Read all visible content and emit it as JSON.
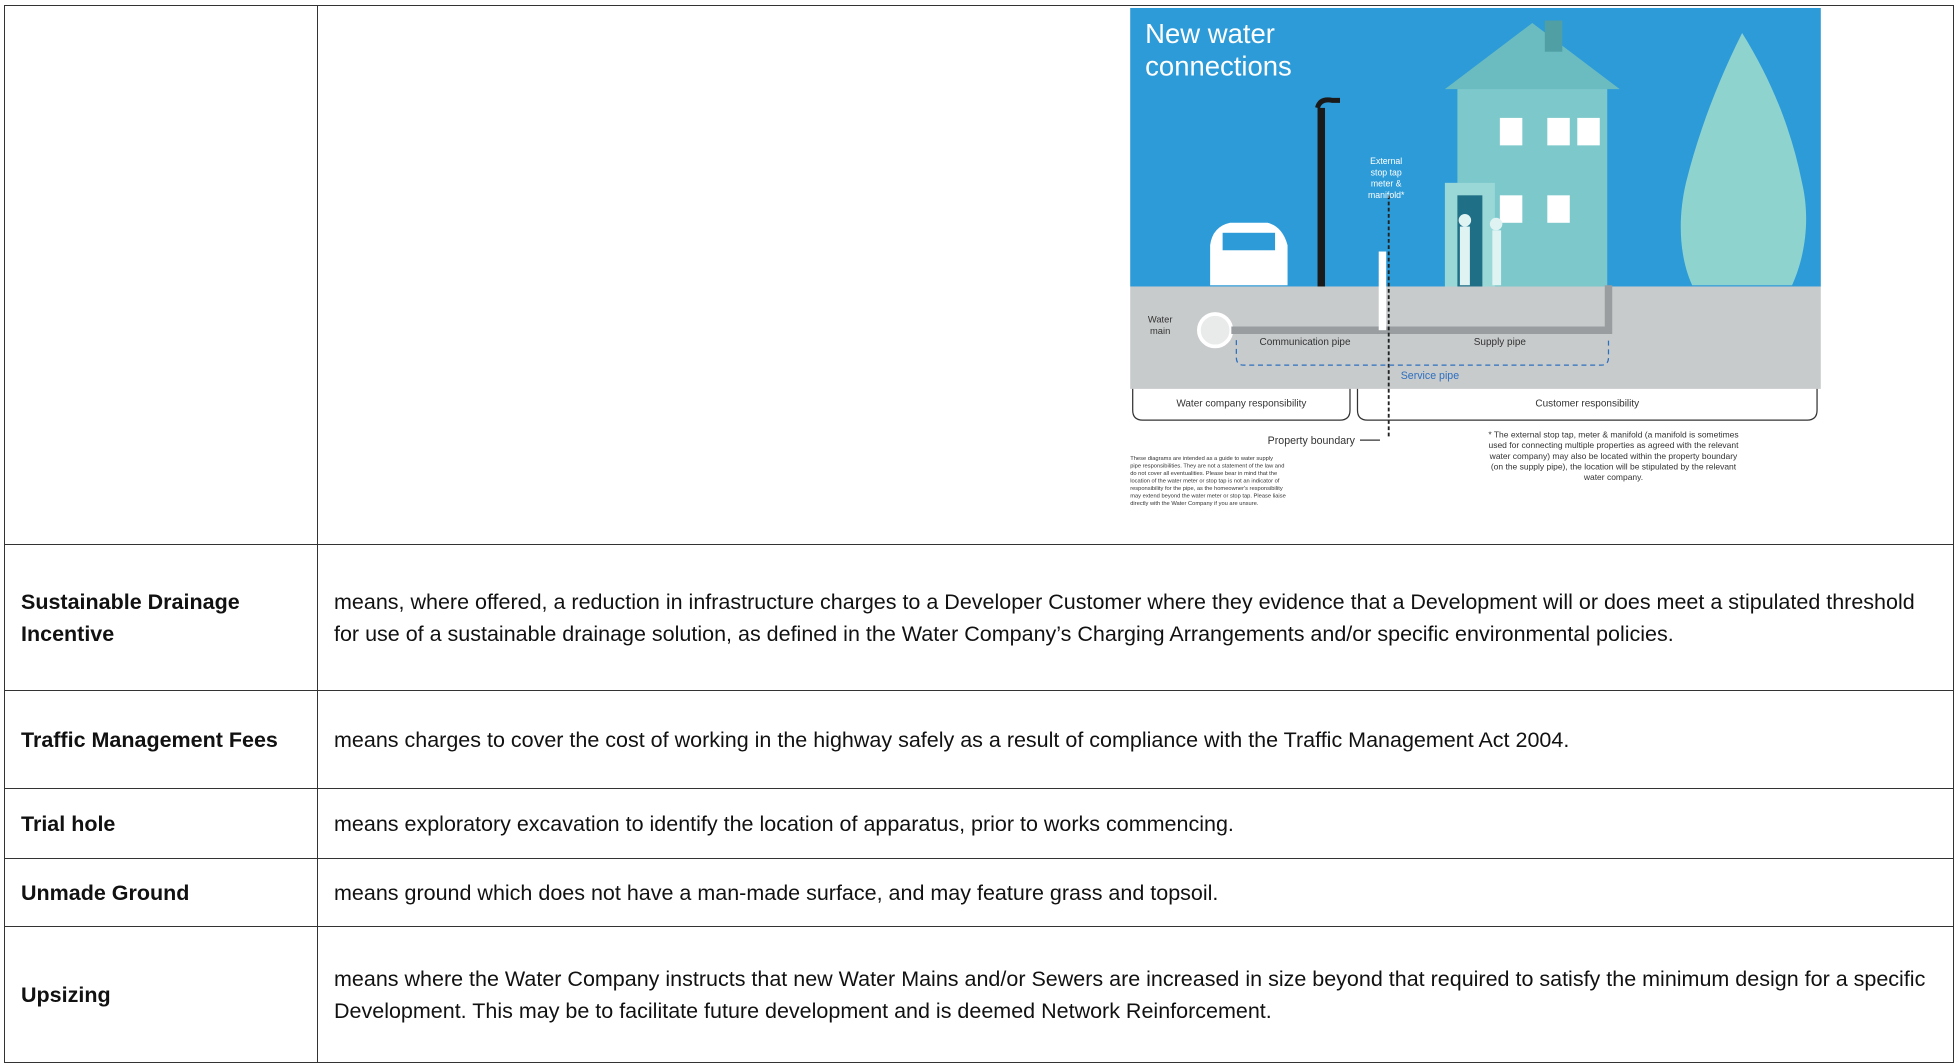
{
  "diagram": {
    "title": [
      "New water",
      "connections"
    ],
    "stop_tap_label": [
      "External",
      "stop tap",
      "meter &",
      "manifold*"
    ],
    "water_main_label": [
      "Water",
      "main"
    ],
    "communication_pipe": "Communication pipe",
    "supply_pipe": "Supply pipe",
    "service_pipe": "Service pipe",
    "water_company_responsibility": "Water company responsibility",
    "customer_responsibility": "Customer responsibility",
    "property_boundary": "Property boundary",
    "disclaimer": [
      "These diagrams are intended as a guide to water supply",
      "pipe responsibilities. They are not a statement of the law and",
      "do not cover all eventualities. Please bear in mind that the",
      "location of the water meter or stop tap is not an indicator of",
      "responsibility for the pipe, as the homeowner's responsibility",
      "may extend beyond the water meter or stop tap. Please liaise",
      "directly with the Water Company if you are unsure."
    ],
    "footnote": [
      "* The external stop tap, meter & manifold (a manifold is sometimes",
      "used for connecting multiple properties as agreed with the relevant",
      "water company) may also be located within the property boundary",
      "(on the supply pipe), the location will be stipulated by the relevant",
      "water company."
    ]
  },
  "table": {
    "rows": [
      [
        "Sustainable Drainage Incentive",
        "means, where offered, a reduction in infrastructure charges to a Developer Customer where they evidence that a Development will or does meet a stipulated threshold for use of a sustainable drainage solution, as defined in the Water Company’s Charging Arrangements and/or specific environmental policies."
      ],
      [
        "Traffic Management Fees",
        "means charges to cover the cost of working in the highway safely as a result of compliance with the Traffic Management Act 2004."
      ],
      [
        "Trial hole",
        "means exploratory excavation to identify the location of apparatus, prior to works commencing."
      ],
      [
        "Unmade Ground",
        "means ground which does not have a man-made surface, and may feature grass and topsoil."
      ],
      [
        "Upsizing",
        "means where the Water Company instructs that new Water Mains and/or Sewers are increased in size beyond that required to satisfy the minimum design for a specific Development. This may be to facilitate future development and is deemed Network Reinforcement."
      ]
    ]
  }
}
